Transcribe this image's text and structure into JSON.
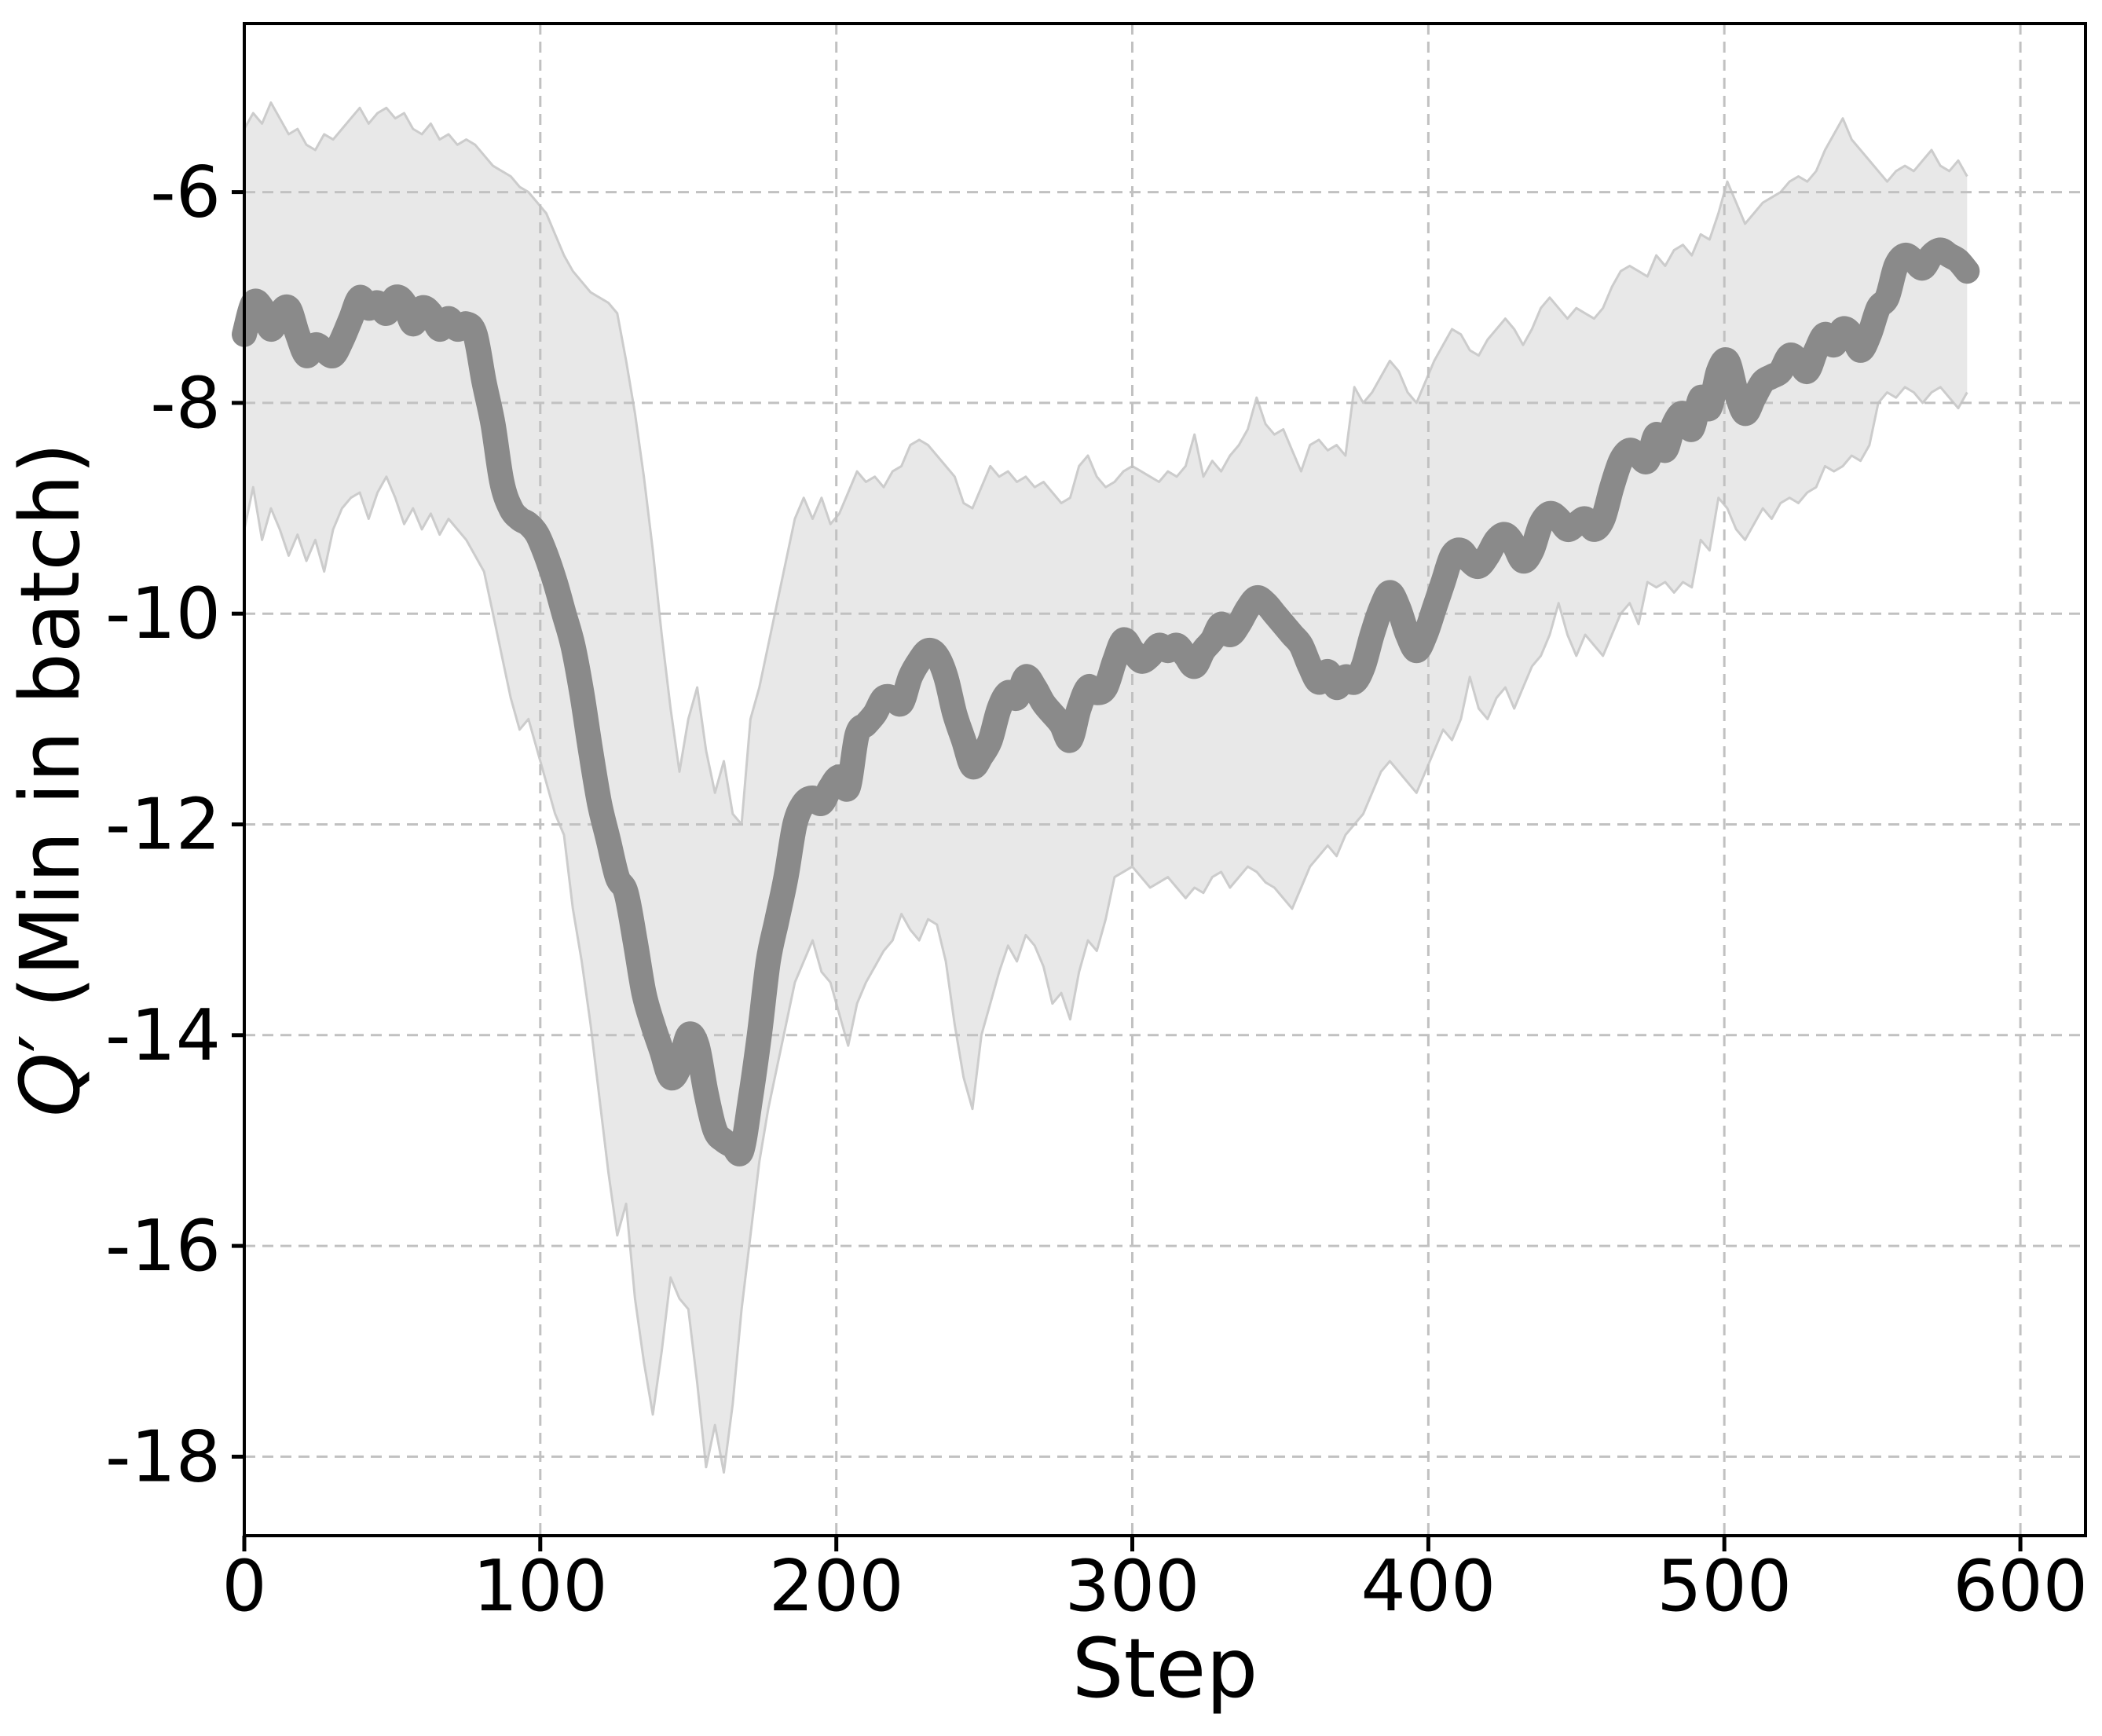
{
  "chart_data": {
    "type": "line",
    "title": "",
    "xlabel": "Step",
    "ylabel": "Q′ (Min in batch)",
    "xlim": [
      0,
      622
    ],
    "ylim": [
      -18.75,
      -4.4
    ],
    "xticks": [
      0,
      100,
      200,
      300,
      400,
      500,
      600
    ],
    "yticks": [
      -6,
      -8,
      -10,
      -12,
      -14,
      -16,
      -18
    ],
    "grid": true,
    "legend_position": "none",
    "x": [
      0,
      3,
      6,
      9,
      12,
      15,
      18,
      21,
      24,
      27,
      30,
      33,
      36,
      39,
      42,
      45,
      48,
      51,
      54,
      57,
      60,
      63,
      66,
      69,
      72,
      75,
      78,
      81,
      84,
      87,
      90,
      93,
      96,
      99,
      102,
      105,
      108,
      111,
      114,
      117,
      120,
      123,
      126,
      129,
      132,
      135,
      138,
      141,
      144,
      147,
      150,
      153,
      156,
      159,
      162,
      165,
      168,
      171,
      174,
      177,
      180,
      183,
      186,
      189,
      192,
      195,
      198,
      201,
      204,
      207,
      210,
      213,
      216,
      219,
      222,
      225,
      228,
      231,
      234,
      237,
      240,
      243,
      246,
      249,
      252,
      255,
      258,
      261,
      264,
      267,
      270,
      273,
      276,
      279,
      282,
      285,
      288,
      291,
      294,
      297,
      300,
      303,
      306,
      309,
      312,
      315,
      318,
      321,
      324,
      327,
      330,
      333,
      336,
      339,
      342,
      345,
      348,
      351,
      354,
      357,
      360,
      363,
      366,
      369,
      372,
      375,
      378,
      381,
      384,
      387,
      390,
      393,
      396,
      399,
      402,
      405,
      408,
      411,
      414,
      417,
      420,
      423,
      426,
      429,
      432,
      435,
      438,
      441,
      444,
      447,
      450,
      453,
      456,
      459,
      462,
      465,
      468,
      471,
      474,
      477,
      480,
      483,
      486,
      489,
      492,
      495,
      498,
      501,
      504,
      507,
      510,
      513,
      516,
      519,
      522,
      525,
      528,
      531,
      534,
      537,
      540,
      543,
      546,
      549,
      552,
      555,
      558,
      561,
      564,
      567,
      570,
      573,
      576,
      579,
      582
    ],
    "series": [
      {
        "name": "mean",
        "values": [
          -7.35,
          -7.05,
          -7.1,
          -7.3,
          -7.15,
          -7.1,
          -7.35,
          -7.55,
          -7.45,
          -7.5,
          -7.55,
          -7.4,
          -7.2,
          -7.0,
          -7.1,
          -7.05,
          -7.15,
          -7.0,
          -7.05,
          -7.25,
          -7.1,
          -7.15,
          -7.3,
          -7.2,
          -7.3,
          -7.25,
          -7.35,
          -7.8,
          -8.2,
          -8.75,
          -9.0,
          -9.1,
          -9.15,
          -9.25,
          -9.45,
          -9.7,
          -10.0,
          -10.3,
          -10.75,
          -11.3,
          -11.8,
          -12.15,
          -12.5,
          -12.65,
          -13.1,
          -13.6,
          -13.9,
          -14.15,
          -14.4,
          -14.3,
          -14.0,
          -14.1,
          -14.55,
          -14.9,
          -15.0,
          -15.05,
          -15.1,
          -14.6,
          -14.0,
          -13.3,
          -12.9,
          -12.5,
          -12.0,
          -11.8,
          -11.75,
          -11.8,
          -11.65,
          -11.55,
          -11.65,
          -11.15,
          -11.05,
          -10.95,
          -10.8,
          -10.8,
          -10.85,
          -10.6,
          -10.45,
          -10.35,
          -10.4,
          -10.6,
          -10.95,
          -11.2,
          -11.45,
          -11.35,
          -11.2,
          -10.9,
          -10.75,
          -10.8,
          -10.6,
          -10.7,
          -10.85,
          -10.95,
          -11.05,
          -11.2,
          -10.9,
          -10.7,
          -10.75,
          -10.7,
          -10.45,
          -10.25,
          -10.35,
          -10.45,
          -10.4,
          -10.3,
          -10.35,
          -10.3,
          -10.4,
          -10.5,
          -10.35,
          -10.25,
          -10.1,
          -10.2,
          -10.1,
          -9.95,
          -9.85,
          -9.9,
          -10.0,
          -10.1,
          -10.2,
          -10.3,
          -10.5,
          -10.65,
          -10.55,
          -10.7,
          -10.6,
          -10.65,
          -10.5,
          -10.2,
          -9.95,
          -9.8,
          -9.95,
          -10.2,
          -10.35,
          -10.2,
          -9.95,
          -9.7,
          -9.45,
          -9.4,
          -9.5,
          -9.55,
          -9.45,
          -9.3,
          -9.25,
          -9.35,
          -9.5,
          -9.4,
          -9.15,
          -9.05,
          -9.1,
          -9.2,
          -9.15,
          -9.1,
          -9.2,
          -9.1,
          -8.8,
          -8.55,
          -8.45,
          -8.5,
          -8.55,
          -8.3,
          -8.45,
          -8.2,
          -8.1,
          -8.25,
          -7.95,
          -8.05,
          -7.7,
          -7.6,
          -7.9,
          -8.1,
          -7.95,
          -7.8,
          -7.75,
          -7.7,
          -7.55,
          -7.6,
          -7.7,
          -7.5,
          -7.35,
          -7.45,
          -7.3,
          -7.35,
          -7.5,
          -7.35,
          -7.1,
          -7.0,
          -6.7,
          -6.6,
          -6.65,
          -6.72,
          -6.6,
          -6.55,
          -6.6,
          -6.65,
          -6.75
        ]
      }
    ],
    "band": {
      "upper": [
        -5.4,
        -5.25,
        -5.35,
        -5.15,
        -5.3,
        -5.45,
        -5.4,
        -5.55,
        -5.6,
        -5.45,
        -5.5,
        -5.4,
        -5.3,
        -5.2,
        -5.35,
        -5.25,
        -5.2,
        -5.3,
        -5.25,
        -5.4,
        -5.45,
        -5.35,
        -5.5,
        -5.45,
        -5.55,
        -5.5,
        -5.55,
        -5.65,
        -5.75,
        -5.8,
        -5.85,
        -5.95,
        -6.0,
        -6.1,
        -6.2,
        -6.4,
        -6.6,
        -6.75,
        -6.85,
        -6.95,
        -7.0,
        -7.05,
        -7.15,
        -7.6,
        -8.1,
        -8.7,
        -9.4,
        -10.2,
        -10.9,
        -11.5,
        -11.0,
        -10.7,
        -11.3,
        -11.7,
        -11.4,
        -11.9,
        -12.0,
        -11.0,
        -10.7,
        -10.3,
        -9.9,
        -9.5,
        -9.1,
        -8.9,
        -9.1,
        -8.9,
        -9.15,
        -9.05,
        -8.85,
        -8.65,
        -8.75,
        -8.7,
        -8.8,
        -8.65,
        -8.6,
        -8.4,
        -8.35,
        -8.4,
        -8.5,
        -8.6,
        -8.7,
        -8.95,
        -9.0,
        -8.8,
        -8.6,
        -8.7,
        -8.65,
        -8.75,
        -8.7,
        -8.8,
        -8.75,
        -8.85,
        -8.95,
        -8.9,
        -8.6,
        -8.5,
        -8.7,
        -8.8,
        -8.75,
        -8.65,
        -8.6,
        -8.65,
        -8.7,
        -8.75,
        -8.65,
        -8.7,
        -8.6,
        -8.3,
        -8.7,
        -8.55,
        -8.65,
        -8.5,
        -8.4,
        -8.25,
        -7.95,
        -8.2,
        -8.3,
        -8.25,
        -8.45,
        -8.65,
        -8.4,
        -8.35,
        -8.45,
        -8.4,
        -8.5,
        -7.85,
        -8.0,
        -7.9,
        -7.75,
        -7.6,
        -7.7,
        -7.9,
        -8.0,
        -7.8,
        -7.6,
        -7.45,
        -7.3,
        -7.35,
        -7.5,
        -7.55,
        -7.4,
        -7.3,
        -7.2,
        -7.3,
        -7.45,
        -7.3,
        -7.1,
        -7.0,
        -7.1,
        -7.2,
        -7.1,
        -7.15,
        -7.2,
        -7.1,
        -6.9,
        -6.75,
        -6.7,
        -6.75,
        -6.8,
        -6.6,
        -6.7,
        -6.55,
        -6.5,
        -6.6,
        -6.4,
        -6.45,
        -6.2,
        -5.9,
        -6.1,
        -6.3,
        -6.2,
        -6.1,
        -6.05,
        -6.0,
        -5.9,
        -5.85,
        -5.9,
        -5.8,
        -5.6,
        -5.45,
        -5.3,
        -5.5,
        -5.6,
        -5.7,
        -5.8,
        -5.9,
        -5.8,
        -5.75,
        -5.8,
        -5.7,
        -5.6,
        -5.75,
        -5.8,
        -5.7,
        -5.85
      ],
      "lower": [
        -9.2,
        -8.8,
        -9.3,
        -9.0,
        -9.2,
        -9.45,
        -9.25,
        -9.5,
        -9.3,
        -9.6,
        -9.2,
        -9.0,
        -8.9,
        -8.85,
        -9.1,
        -8.85,
        -8.7,
        -8.9,
        -9.15,
        -9.0,
        -9.2,
        -9.05,
        -9.25,
        -9.1,
        -9.2,
        -9.3,
        -9.45,
        -9.6,
        -10.0,
        -10.4,
        -10.8,
        -11.1,
        -11.0,
        -11.3,
        -11.6,
        -11.9,
        -12.1,
        -12.8,
        -13.3,
        -13.9,
        -14.6,
        -15.3,
        -15.9,
        -15.6,
        -16.5,
        -17.1,
        -17.6,
        -17.0,
        -16.3,
        -16.5,
        -16.6,
        -17.3,
        -18.1,
        -17.7,
        -18.15,
        -17.5,
        -16.6,
        -15.9,
        -15.2,
        -14.7,
        -14.3,
        -13.9,
        -13.5,
        -13.3,
        -13.1,
        -13.4,
        -13.5,
        -13.8,
        -14.1,
        -13.7,
        -13.5,
        -13.35,
        -13.2,
        -13.1,
        -12.85,
        -13.0,
        -13.1,
        -12.9,
        -12.95,
        -13.3,
        -13.9,
        -14.4,
        -14.7,
        -14.0,
        -13.7,
        -13.4,
        -13.15,
        -13.3,
        -13.05,
        -13.15,
        -13.35,
        -13.7,
        -13.6,
        -13.85,
        -13.4,
        -13.1,
        -13.2,
        -12.9,
        -12.5,
        -12.45,
        -12.4,
        -12.5,
        -12.6,
        -12.55,
        -12.5,
        -12.6,
        -12.7,
        -12.6,
        -12.65,
        -12.5,
        -12.45,
        -12.6,
        -12.5,
        -12.4,
        -12.45,
        -12.55,
        -12.6,
        -12.7,
        -12.8,
        -12.6,
        -12.4,
        -12.3,
        -12.2,
        -12.3,
        -12.1,
        -12.0,
        -11.9,
        -11.7,
        -11.5,
        -11.4,
        -11.5,
        -11.6,
        -11.7,
        -11.5,
        -11.3,
        -11.1,
        -11.2,
        -11.0,
        -10.6,
        -10.9,
        -11.0,
        -10.8,
        -10.7,
        -10.9,
        -10.7,
        -10.5,
        -10.4,
        -10.2,
        -9.9,
        -10.2,
        -10.4,
        -10.2,
        -10.3,
        -10.4,
        -10.2,
        -10.0,
        -9.9,
        -10.1,
        -9.7,
        -9.75,
        -9.7,
        -9.8,
        -9.7,
        -9.75,
        -9.3,
        -9.4,
        -8.9,
        -9.0,
        -9.2,
        -9.3,
        -9.15,
        -9.0,
        -9.1,
        -8.95,
        -8.9,
        -8.95,
        -8.85,
        -8.8,
        -8.6,
        -8.65,
        -8.6,
        -8.5,
        -8.55,
        -8.4,
        -8.0,
        -7.9,
        -7.95,
        -7.85,
        -7.9,
        -8.0,
        -7.9,
        -7.85,
        -7.95,
        -8.05,
        -7.9
      ]
    },
    "colors": {
      "line": "#8a8a8a",
      "band_fill": "#e8e8e8",
      "band_edge": "#cccccc",
      "grid": "#c1c1c1",
      "spine": "#000000",
      "text": "#000000"
    }
  }
}
